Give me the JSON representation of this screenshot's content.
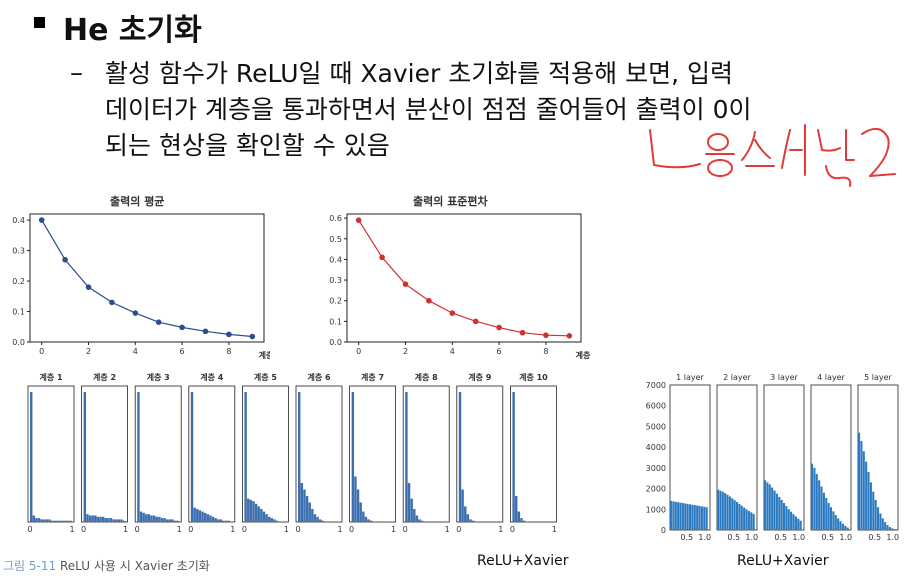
{
  "slide": {
    "title": "He 초기화",
    "bullet_dash": "–",
    "lines": [
      "활성 함수가 ReLU일 때 Xavier 초기화를 적용해 보면, 입력",
      "데이터가 계층을 통과하면서 분산이 점점 줄어들어 출력이 0이",
      "되는 현상을 확인할 수 있음"
    ],
    "handwritten_note": "느음소가 낮2"
  },
  "figure_caption": {
    "prefix": "그림 5-11",
    "text": " ReLU 사용 시 Xavier 초기화"
  },
  "relu_label_left": "ReLU+Xavier",
  "relu_label_right": "ReLU+Xavier",
  "colors": {
    "mean_line": "#2b4f8c",
    "std_line": "#d03030",
    "hist": "#3d6fb0",
    "hist_right": "#2b79c0"
  },
  "chart_data": [
    {
      "type": "line",
      "title": "출력의 평균",
      "xlabel": "계층",
      "x": [
        0,
        1,
        2,
        3,
        4,
        5,
        6,
        7,
        8,
        9
      ],
      "series": [
        {
          "values": [
            0.4,
            0.27,
            0.18,
            0.13,
            0.095,
            0.065,
            0.048,
            0.035,
            0.025,
            0.018
          ]
        }
      ],
      "xticks": [
        0,
        2,
        4,
        6,
        8
      ],
      "yticks": [
        0.0,
        0.1,
        0.2,
        0.3,
        0.4
      ],
      "ylim": [
        0,
        0.42
      ]
    },
    {
      "type": "line",
      "title": "출력의 표준편차",
      "xlabel": "계층",
      "x": [
        0,
        1,
        2,
        3,
        4,
        5,
        6,
        7,
        8,
        9
      ],
      "series": [
        {
          "values": [
            0.59,
            0.41,
            0.28,
            0.2,
            0.14,
            0.1,
            0.07,
            0.045,
            0.033,
            0.03
          ]
        }
      ],
      "xticks": [
        0,
        2,
        4,
        6,
        8
      ],
      "yticks": [
        0.0,
        0.1,
        0.2,
        0.3,
        0.4,
        0.5,
        0.6
      ],
      "ylim": [
        0,
        0.62
      ]
    },
    {
      "type": "bar",
      "title": "ReLU+Xavier histograms (left)",
      "panels": [
        {
          "label": "계층 1",
          "values": [
            1.0,
            0.05,
            0.03,
            0.03,
            0.02,
            0.02,
            0.02,
            0.02,
            0.01,
            0.01,
            0.01,
            0.01,
            0.01,
            0.01,
            0.01,
            0.01
          ]
        },
        {
          "label": "계층 2",
          "values": [
            1.0,
            0.06,
            0.05,
            0.05,
            0.05,
            0.04,
            0.04,
            0.04,
            0.03,
            0.03,
            0.03,
            0.02,
            0.02,
            0.02,
            0.02,
            0.01
          ]
        },
        {
          "label": "계층 3",
          "values": [
            1.0,
            0.08,
            0.07,
            0.06,
            0.06,
            0.05,
            0.05,
            0.04,
            0.04,
            0.03,
            0.03,
            0.02,
            0.02,
            0.02,
            0.01,
            0.01
          ]
        },
        {
          "label": "계층 4",
          "values": [
            1.0,
            0.11,
            0.1,
            0.09,
            0.08,
            0.07,
            0.06,
            0.05,
            0.04,
            0.03,
            0.02,
            0.02,
            0.01,
            0.01,
            0.01,
            0.0
          ]
        },
        {
          "label": "계층 5",
          "values": [
            1.0,
            0.18,
            0.17,
            0.16,
            0.14,
            0.12,
            0.1,
            0.08,
            0.06,
            0.04,
            0.03,
            0.02,
            0.01,
            0.0,
            0.0,
            0.0
          ]
        },
        {
          "label": "계층 6",
          "values": [
            1.0,
            0.3,
            0.25,
            0.2,
            0.15,
            0.1,
            0.06,
            0.04,
            0.02,
            0.01,
            0.0,
            0.0,
            0.0,
            0.0,
            0.0,
            0.0
          ]
        },
        {
          "label": "계층 7",
          "values": [
            1.0,
            0.35,
            0.25,
            0.15,
            0.08,
            0.04,
            0.02,
            0.01,
            0.0,
            0.0,
            0.0,
            0.0,
            0.0,
            0.0,
            0.0,
            0.0
          ]
        },
        {
          "label": "계층 8",
          "values": [
            1.0,
            0.3,
            0.18,
            0.1,
            0.05,
            0.02,
            0.01,
            0.0,
            0.0,
            0.0,
            0.0,
            0.0,
            0.0,
            0.0,
            0.0,
            0.0
          ]
        },
        {
          "label": "계층 9",
          "values": [
            1.0,
            0.25,
            0.12,
            0.06,
            0.02,
            0.01,
            0.0,
            0.0,
            0.0,
            0.0,
            0.0,
            0.0,
            0.0,
            0.0,
            0.0,
            0.0
          ]
        },
        {
          "label": "계층 10",
          "values": [
            1.0,
            0.2,
            0.08,
            0.03,
            0.01,
            0.0,
            0.0,
            0.0,
            0.0,
            0.0,
            0.0,
            0.0,
            0.0,
            0.0,
            0.0,
            0.0
          ]
        }
      ],
      "xticks": [
        "0",
        "1"
      ]
    },
    {
      "type": "bar",
      "title": "ReLU+Xavier histograms (right)",
      "panels": [
        {
          "label": "1 layer",
          "values": [
            1400,
            1380,
            1360,
            1340,
            1320,
            1300,
            1280,
            1260,
            1240,
            1220,
            1200,
            1180,
            1160,
            1140,
            1120,
            1100
          ]
        },
        {
          "label": "2 layer",
          "values": [
            1950,
            1900,
            1850,
            1780,
            1700,
            1620,
            1530,
            1440,
            1350,
            1260,
            1170,
            1080,
            1000,
            920,
            850,
            780
          ]
        },
        {
          "label": "3 layer",
          "values": [
            2400,
            2300,
            2200,
            2050,
            1900,
            1750,
            1600,
            1450,
            1300,
            1150,
            1000,
            880,
            760,
            650,
            550,
            450
          ]
        },
        {
          "label": "4 layer",
          "values": [
            3200,
            3000,
            2700,
            2400,
            2100,
            1800,
            1550,
            1300,
            1100,
            900,
            720,
            560,
            420,
            300,
            200,
            120
          ]
        },
        {
          "label": "5 layer",
          "values": [
            4700,
            4300,
            3800,
            3300,
            2800,
            2300,
            1850,
            1450,
            1100,
            800,
            560,
            380,
            240,
            140,
            80,
            40
          ]
        }
      ],
      "yticks": [
        0,
        1000,
        2000,
        3000,
        4000,
        5000,
        6000,
        7000
      ],
      "xticks": [
        "0.5",
        "1.0"
      ]
    }
  ]
}
